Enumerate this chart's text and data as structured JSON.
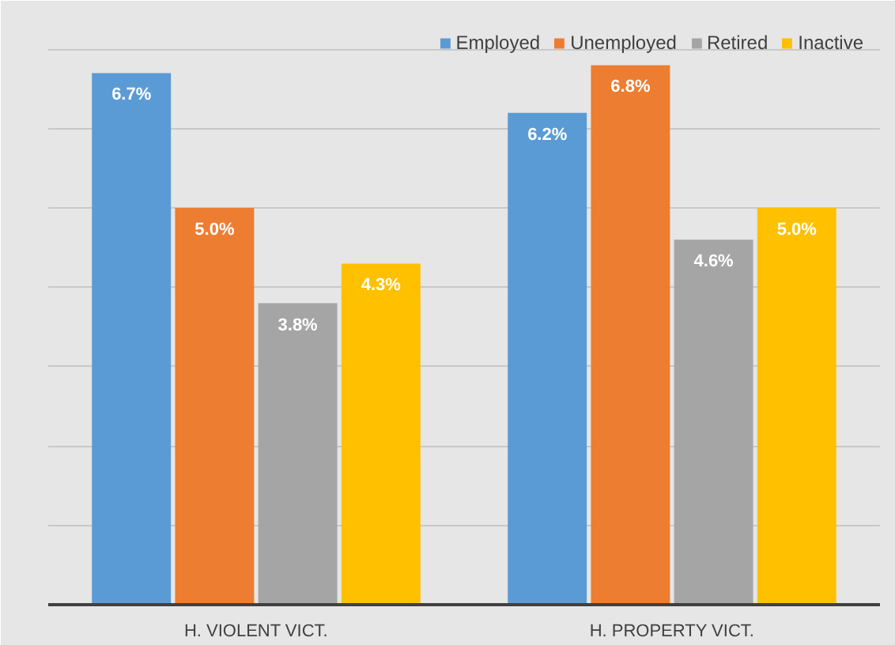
{
  "chart_data": {
    "type": "bar",
    "categories": [
      "H. VIOLENT VICT.",
      "H. PROPERTY VICT."
    ],
    "series": [
      {
        "name": "Employed",
        "color": "#5b9bd5",
        "values": [
          6.7,
          6.2
        ],
        "value_labels": [
          "6.7%",
          "6.2%"
        ]
      },
      {
        "name": "Unemployed",
        "color": "#ed7d31",
        "values": [
          5.0,
          6.8
        ],
        "value_labels": [
          "5.0%",
          "6.8%"
        ]
      },
      {
        "name": "Retired",
        "color": "#a5a5a5",
        "values": [
          3.8,
          4.6
        ],
        "value_labels": [
          "3.8%",
          "4.6%"
        ]
      },
      {
        "name": "Inactive",
        "color": "#ffc000",
        "values": [
          4.3,
          5.0
        ],
        "value_labels": [
          "4.3%",
          "5.0%"
        ]
      }
    ],
    "grid": "y",
    "legend": "top right",
    "tick_labels": "x"
  }
}
